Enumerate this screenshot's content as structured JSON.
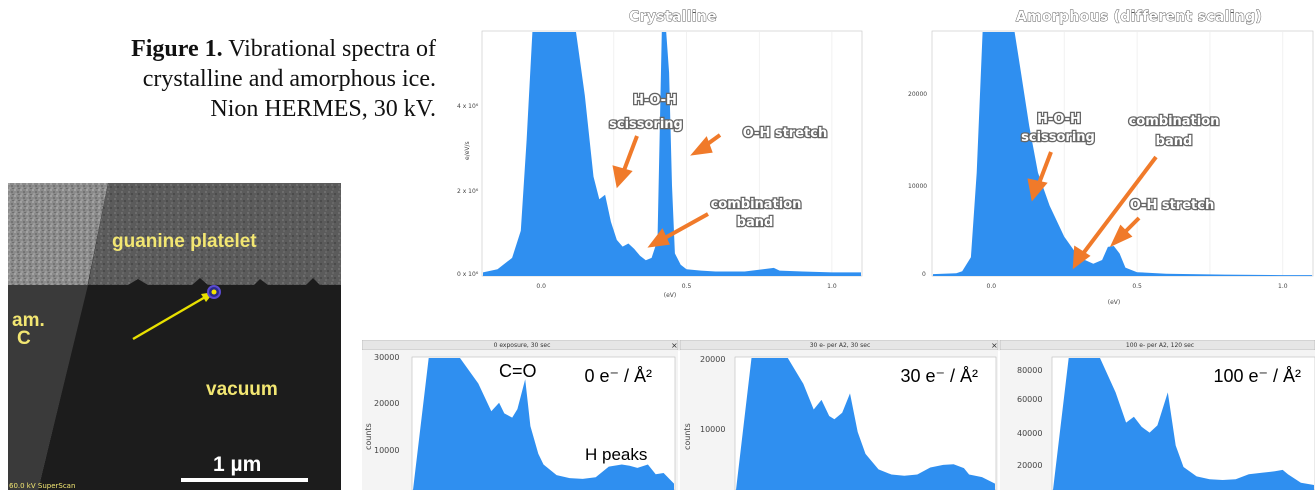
{
  "figure": {
    "caption_label": "Figure 1.",
    "caption_line1": " Vibrational spectra of",
    "caption_line2": "crystalline and amorphous ice.",
    "caption_line3": "Nion HERMES, 30 kV."
  },
  "sem": {
    "label_guanine": "guanine platelet",
    "label_amc_1": "am.",
    "label_amc_2": "C",
    "label_vacuum": "vacuum",
    "scale_bar": "1 µm",
    "footer": "60.0 kV SuperScan"
  },
  "colors": {
    "spectrum": "#2f8ff0",
    "arrow": "#f07a2a",
    "sem_text": "#f2e672"
  },
  "chart_data": [
    {
      "type": "area",
      "title": "Crystalline",
      "xlabel": "(eV)",
      "ylabel": "e/eV/s",
      "x_ticks": [
        "0.0",
        "0.5",
        "1.0"
      ],
      "y_ticks": [
        "0 x 10⁶",
        "2 x 10⁶",
        "4 x 10⁶"
      ],
      "xlim": [
        -0.2,
        1.1
      ],
      "ylim": [
        0,
        5.4
      ],
      "x": [
        -0.2,
        -0.15,
        -0.1,
        -0.07,
        -0.05,
        -0.03,
        -0.02,
        0.0,
        0.03,
        0.06,
        0.08,
        0.1,
        0.12,
        0.15,
        0.18,
        0.2,
        0.22,
        0.24,
        0.26,
        0.28,
        0.3,
        0.32,
        0.34,
        0.36,
        0.38,
        0.4,
        0.415,
        0.42,
        0.43,
        0.44,
        0.45,
        0.46,
        0.48,
        0.5,
        0.55,
        0.6,
        0.7,
        0.8,
        0.82,
        0.9,
        1.0,
        1.1
      ],
      "values": [
        0.08,
        0.15,
        0.4,
        1.0,
        3.0,
        5.4,
        5.4,
        5.4,
        5.4,
        5.4,
        5.4,
        5.4,
        5.4,
        4.0,
        2.2,
        1.7,
        1.8,
        1.2,
        0.8,
        0.65,
        0.72,
        0.6,
        0.45,
        0.35,
        0.4,
        0.8,
        5.4,
        5.4,
        5.4,
        4.5,
        2.0,
        0.5,
        0.25,
        0.15,
        0.12,
        0.1,
        0.1,
        0.18,
        0.12,
        0.1,
        0.08,
        0.08
      ],
      "annotations": [
        "H-O-H scissoring",
        "O-H stretch",
        "combination band"
      ]
    },
    {
      "type": "area",
      "title": "Amorphous (different scaling)",
      "xlabel": "(eV)",
      "ylabel": "",
      "x_ticks": [
        "0.0",
        "0.5",
        "1.0"
      ],
      "y_ticks": [
        "0",
        "10000",
        "20000"
      ],
      "xlim": [
        -0.2,
        1.1
      ],
      "ylim": [
        0,
        26000
      ],
      "x": [
        -0.2,
        -0.12,
        -0.1,
        -0.07,
        -0.05,
        -0.03,
        -0.02,
        0.0,
        0.03,
        0.05,
        0.08,
        0.1,
        0.13,
        0.16,
        0.2,
        0.25,
        0.3,
        0.35,
        0.38,
        0.4,
        0.42,
        0.44,
        0.46,
        0.5,
        0.6,
        0.8,
        1.0,
        1.1
      ],
      "values": [
        200,
        300,
        500,
        2000,
        11000,
        26000,
        26000,
        26000,
        26000,
        26000,
        26000,
        22000,
        16000,
        11000,
        7500,
        4200,
        2000,
        1300,
        1700,
        3100,
        3200,
        2400,
        900,
        400,
        250,
        150,
        100,
        100
      ],
      "annotations": [
        "H-O-H scissoring",
        "combination band",
        "O-H stretch"
      ]
    },
    {
      "type": "area",
      "title": "0 exposure, 30  sec",
      "label": "0 e⁻ / Å²",
      "ylabel": "counts",
      "y_ticks": [
        "10000",
        "20000",
        "30000"
      ],
      "ylim": [
        0,
        31000
      ],
      "x": [
        0,
        0.06,
        0.08,
        0.18,
        0.25,
        0.3,
        0.33,
        0.35,
        0.38,
        0.4,
        0.43,
        0.45,
        0.48,
        0.5,
        0.55,
        0.6,
        0.65,
        0.7,
        0.75,
        0.8,
        0.83,
        0.86,
        0.9,
        0.93,
        0.96,
        1.0
      ],
      "values": [
        0,
        31000,
        31000,
        31000,
        25000,
        18500,
        20500,
        18000,
        17000,
        19000,
        26000,
        15000,
        8500,
        6000,
        3500,
        2800,
        2600,
        3000,
        5500,
        6000,
        5700,
        5200,
        6000,
        3700,
        4000,
        1500
      ],
      "annotations": [
        "C=O",
        "H peaks"
      ]
    },
    {
      "type": "area",
      "title": "30 e- per A2, 30 sec",
      "label": "30 e⁻ / Å²",
      "ylabel": "counts",
      "y_ticks": [
        "10000",
        "20000"
      ],
      "ylim": [
        0,
        20500
      ],
      "x": [
        0,
        0.06,
        0.08,
        0.2,
        0.26,
        0.3,
        0.33,
        0.36,
        0.38,
        0.41,
        0.44,
        0.47,
        0.5,
        0.55,
        0.6,
        0.65,
        0.7,
        0.75,
        0.8,
        0.84,
        0.88,
        0.9,
        0.95,
        1.0
      ],
      "values": [
        0,
        20500,
        20500,
        20500,
        16500,
        12500,
        14000,
        11500,
        11000,
        12000,
        15000,
        9000,
        5600,
        3200,
        2400,
        2200,
        2400,
        3500,
        3900,
        4000,
        3400,
        2400,
        2000,
        1000
      ],
      "annotations": []
    },
    {
      "type": "area",
      "title": "100 e- per A2, 120 sec",
      "label": "100 e⁻ / Å²",
      "ylabel": "",
      "y_ticks": [
        "20000",
        "40000",
        "60000",
        "80000"
      ],
      "ylim": [
        0,
        92000
      ],
      "x": [
        0,
        0.06,
        0.08,
        0.18,
        0.24,
        0.28,
        0.31,
        0.34,
        0.37,
        0.4,
        0.44,
        0.47,
        0.5,
        0.55,
        0.6,
        0.65,
        0.7,
        0.75,
        0.8,
        0.85,
        0.88,
        0.9,
        0.95,
        1.0
      ],
      "values": [
        0,
        92000,
        92000,
        92000,
        68000,
        47000,
        51000,
        44000,
        40000,
        45000,
        68000,
        31000,
        16000,
        9500,
        7500,
        7000,
        7500,
        11000,
        12000,
        13000,
        14000,
        11000,
        5000,
        3500
      ],
      "annotations": []
    }
  ]
}
